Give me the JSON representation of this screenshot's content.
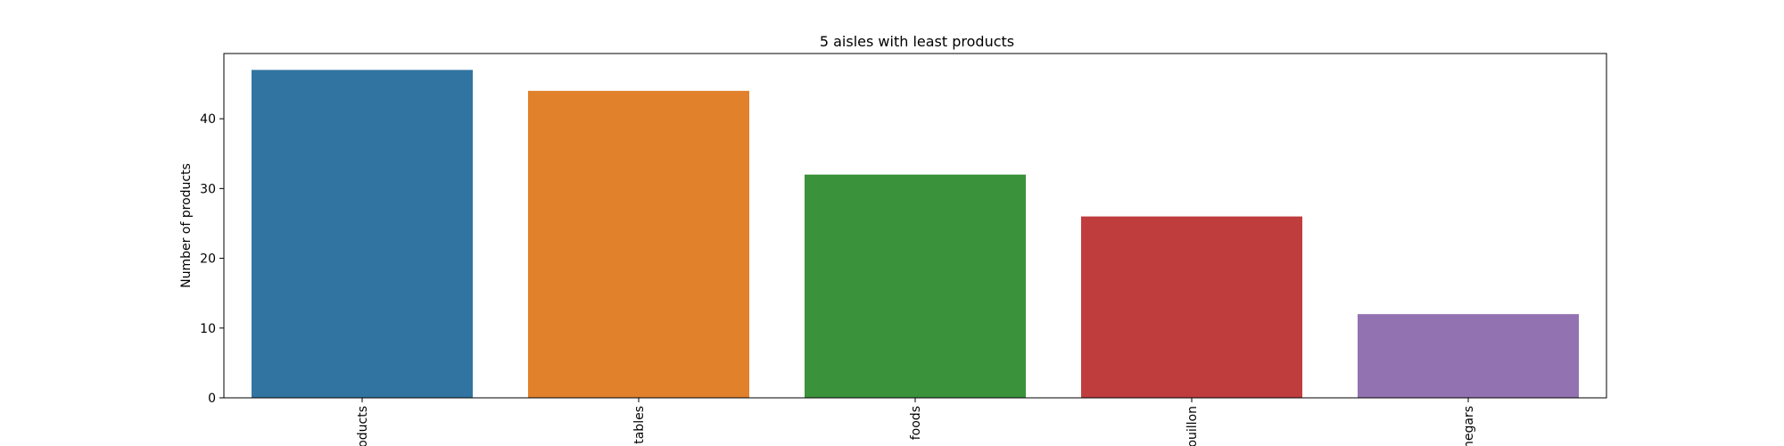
{
  "chart_data": {
    "type": "bar",
    "title": "5 aisles with least products",
    "xlabel": "",
    "ylabel": "Number of products",
    "categories": [
      "products",
      "tables",
      "foods",
      "ouillon",
      "negars"
    ],
    "values": [
      47,
      44,
      32,
      26,
      12
    ],
    "yticks": [
      0,
      10,
      20,
      30,
      40
    ],
    "ylim": [
      0,
      49.35
    ],
    "colors": [
      "#3274a1",
      "#e1812c",
      "#3a923a",
      "#c03d3e",
      "#9372b2"
    ],
    "grid": false,
    "legend": "none"
  }
}
